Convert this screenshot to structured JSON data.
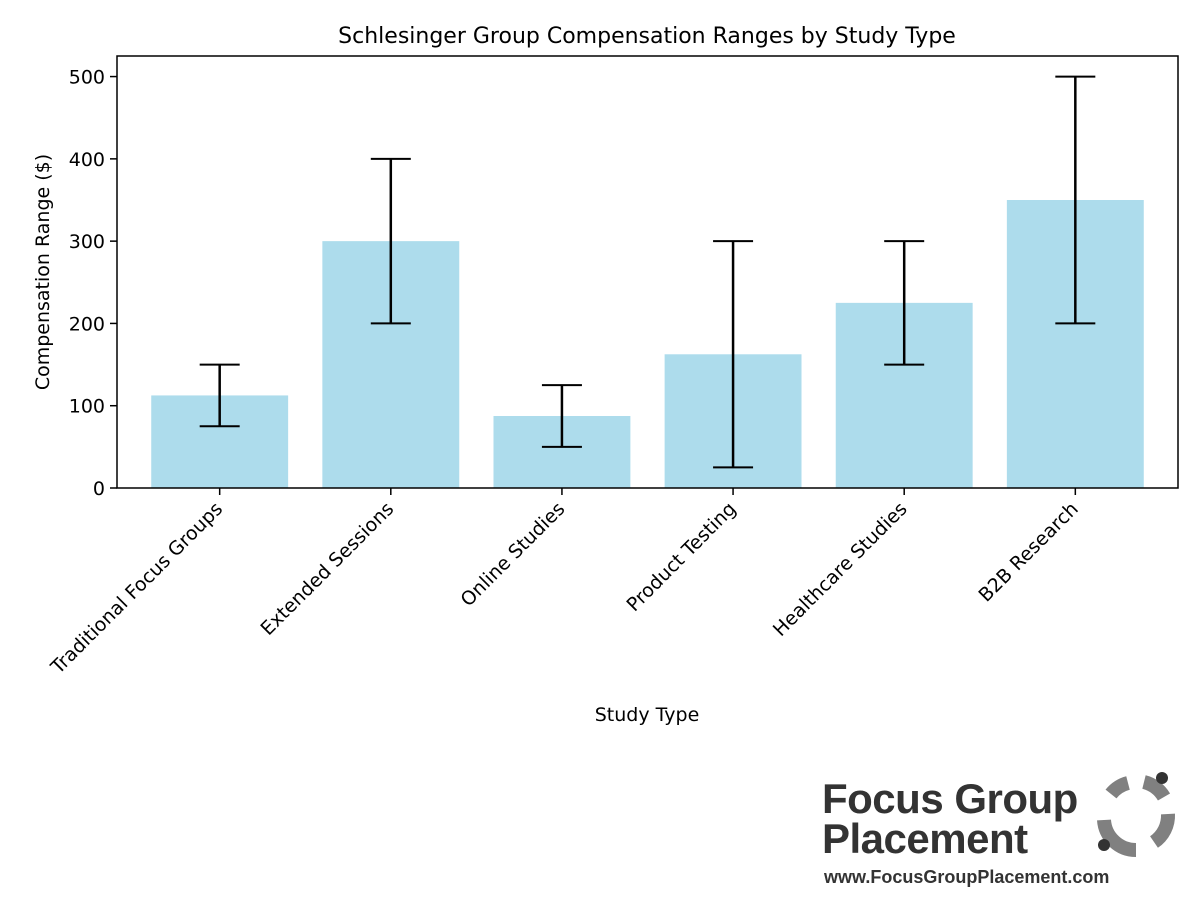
{
  "chart_data": {
    "type": "bar",
    "title": "Schlesinger Group Compensation Ranges by Study Type",
    "xlabel": "Study Type",
    "ylabel": "Compensation Range ($)",
    "categories": [
      "Traditional Focus Groups",
      "Extended Sessions",
      "Online Studies",
      "Product Testing",
      "Healthcare Studies",
      "B2B Research"
    ],
    "values": [
      112.5,
      300,
      87.5,
      162.5,
      225,
      350
    ],
    "error_low": [
      75,
      200,
      50,
      25,
      150,
      200
    ],
    "error_high": [
      150,
      400,
      125,
      300,
      300,
      500
    ],
    "ylim": [
      0,
      525
    ],
    "yticks": [
      0,
      100,
      200,
      300,
      400,
      500
    ],
    "bar_color": "#ADDCEC",
    "error_color": "#000000",
    "grid": false
  },
  "logo": {
    "line1": "Focus Group",
    "line2": "Placement",
    "url": "www.FocusGroupPlacement.com"
  }
}
